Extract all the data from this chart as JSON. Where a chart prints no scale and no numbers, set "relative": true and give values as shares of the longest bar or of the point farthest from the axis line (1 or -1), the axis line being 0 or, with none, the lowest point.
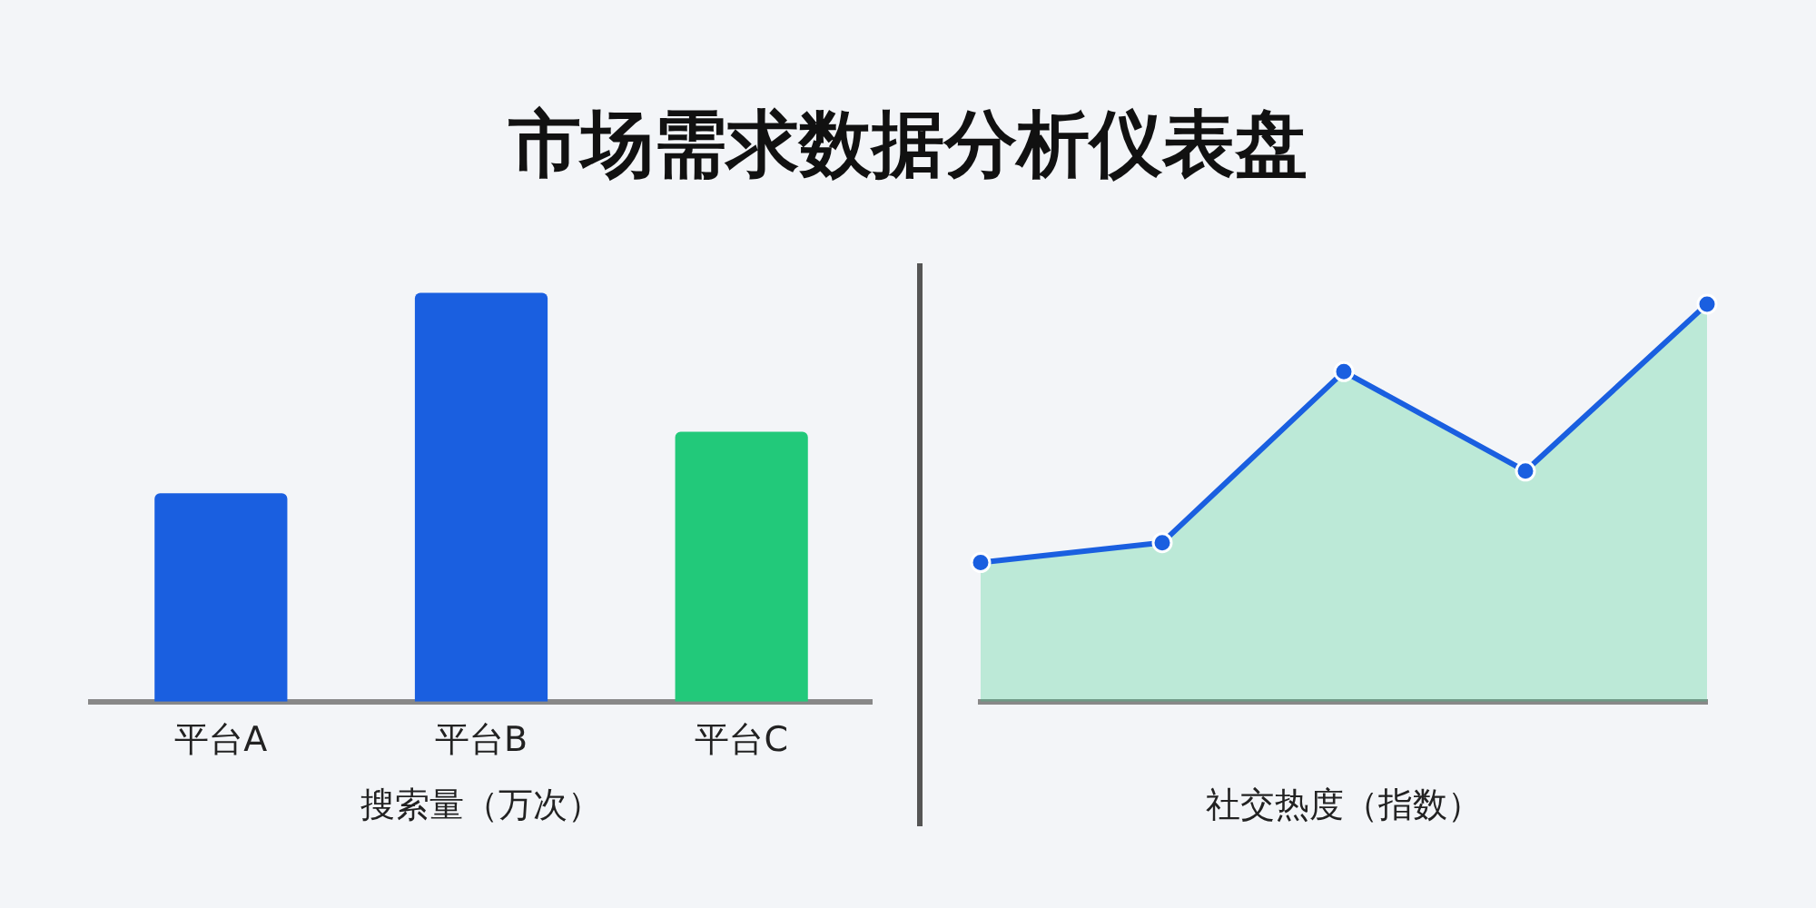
{
  "chart_data": [
    {
      "type": "bar",
      "title": "市场需求数据分析仪表盘",
      "xlabel": "搜索量（万次）",
      "categories": [
        "平台A",
        "平台B",
        "平台C"
      ],
      "relative": true,
      "values": [
        0.51,
        1,
        0.66
      ],
      "colors": [
        "#1a5fe0",
        "#1a5fe0",
        "#22c97a"
      ]
    },
    {
      "type": "area",
      "xlabel": "社交热度（指数）",
      "categories": [
        null,
        null,
        null,
        null,
        null
      ],
      "relative": true,
      "marker": "circle",
      "series": [
        {
          "color": "#1a5fe0",
          "values": [
            0.35,
            0.4,
            0.83,
            0.58,
            1
          ]
        }
      ]
    }
  ]
}
